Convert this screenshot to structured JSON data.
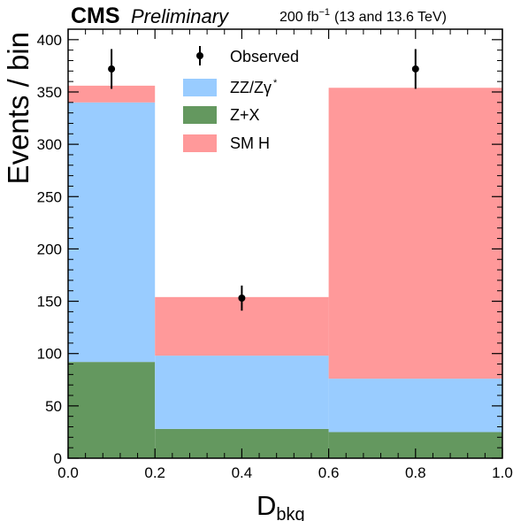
{
  "header": {
    "experiment": "CMS",
    "status": "Preliminary",
    "lumi_prefix": "200 fb",
    "lumi_exp": "−1",
    "lumi_suffix": "(13 and 13.6 TeV)"
  },
  "legend": {
    "observed": "Observed",
    "zz_main": "ZZ/Zγ",
    "zz_sup": "*",
    "zx": "Z+X",
    "smh": "SM H"
  },
  "chart_data": {
    "type": "bar",
    "stacked": true,
    "title": "",
    "xlabel_main": "D",
    "xlabel_sub": "bkg",
    "ylabel": "Events / bin",
    "xlim": [
      0.0,
      1.0
    ],
    "ylim": [
      0,
      410
    ],
    "bin_edges": [
      0.0,
      0.2,
      0.6,
      1.0
    ],
    "x_ticks": [
      "0.0",
      "0.2",
      "0.4",
      "0.6",
      "0.8",
      "1.0"
    ],
    "y_ticks": [
      "0",
      "50",
      "100",
      "150",
      "200",
      "250",
      "300",
      "350",
      "400"
    ],
    "series": [
      {
        "name": "Z+X",
        "color": "#64985f",
        "values": [
          92,
          28,
          25
        ]
      },
      {
        "name": "ZZ/Zγ*",
        "color": "#99ccff",
        "values": [
          248,
          70,
          51
        ]
      },
      {
        "name": "SM H",
        "color": "#ff999a",
        "values": [
          16,
          56,
          278
        ]
      }
    ],
    "observed": {
      "name": "Observed",
      "x": [
        0.1,
        0.4,
        0.8
      ],
      "y": [
        372,
        153,
        372
      ],
      "err": [
        19,
        12,
        19
      ]
    },
    "legend_position": "top-center",
    "grid": false
  }
}
